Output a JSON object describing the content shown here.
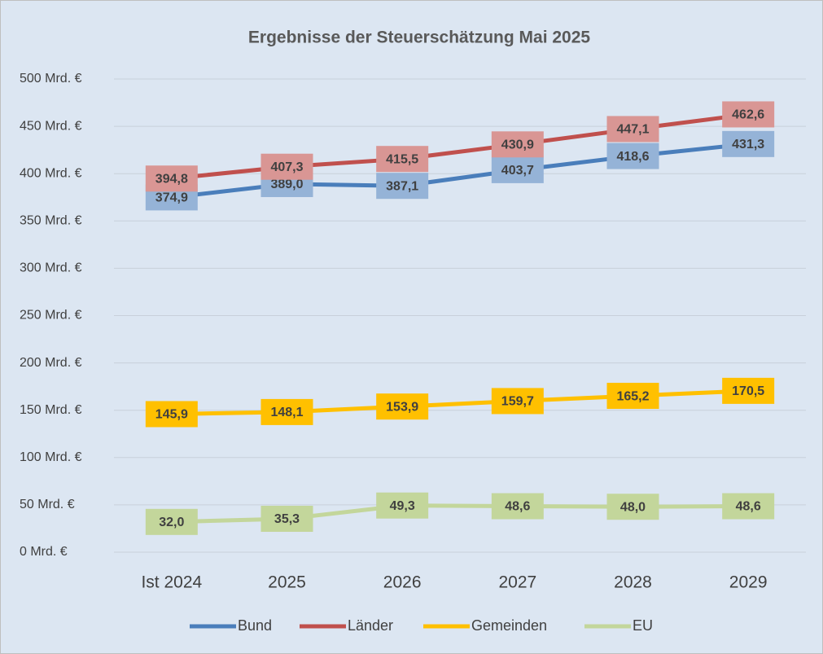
{
  "chart_data": {
    "type": "line",
    "title": "Ergebnisse der Steuerschätzung Mai 2025",
    "categories": [
      "Ist 2024",
      "2025",
      "2026",
      "2027",
      "2028",
      "2029"
    ],
    "series": [
      {
        "name": "Bund",
        "color": "#4a7ebb",
        "label_color": "#95b3d7",
        "values": [
          374.9,
          389.0,
          387.1,
          403.7,
          418.6,
          431.3
        ],
        "value_labels": [
          "374,9",
          "389,0",
          "387,1",
          "403,7",
          "418,6",
          "431,3"
        ]
      },
      {
        "name": "Länder",
        "color": "#c0504d",
        "label_color": "#d99694",
        "values": [
          394.8,
          407.3,
          415.5,
          430.9,
          447.1,
          462.6
        ],
        "value_labels": [
          "394,8",
          "407,3",
          "415,5",
          "430,9",
          "447,1",
          "462,6"
        ]
      },
      {
        "name": "Gemeinden",
        "color": "#ffc000",
        "label_color": "#ffc000",
        "values": [
          145.9,
          148.1,
          153.9,
          159.7,
          165.2,
          170.5
        ],
        "value_labels": [
          "145,9",
          "148,1",
          "153,9",
          "159,7",
          "165,2",
          "170,5"
        ]
      },
      {
        "name": "EU",
        "color": "#c3d69b",
        "label_color": "#c3d69b",
        "values": [
          32.0,
          35.3,
          49.3,
          48.6,
          48.0,
          48.6
        ],
        "value_labels": [
          "32,0",
          "35,3",
          "49,3",
          "48,6",
          "48,0",
          "48,6"
        ]
      }
    ],
    "ylim": [
      0,
      500
    ],
    "yticks": [
      {
        "value": 0,
        "label": "0 Mrd. €"
      },
      {
        "value": 50,
        "label": "50 Mrd. €"
      },
      {
        "value": 100,
        "label": "100 Mrd. €"
      },
      {
        "value": 150,
        "label": "150 Mrd. €"
      },
      {
        "value": 200,
        "label": "200 Mrd. €"
      },
      {
        "value": 250,
        "label": "250 Mrd. €"
      },
      {
        "value": 300,
        "label": "300 Mrd. €"
      },
      {
        "value": 350,
        "label": "350 Mrd. €"
      },
      {
        "value": 400,
        "label": "400 Mrd. €"
      },
      {
        "value": 450,
        "label": "450 Mrd. €"
      },
      {
        "value": 500,
        "label": "500 Mrd. €"
      }
    ],
    "grid": true,
    "legend": "bottom"
  }
}
